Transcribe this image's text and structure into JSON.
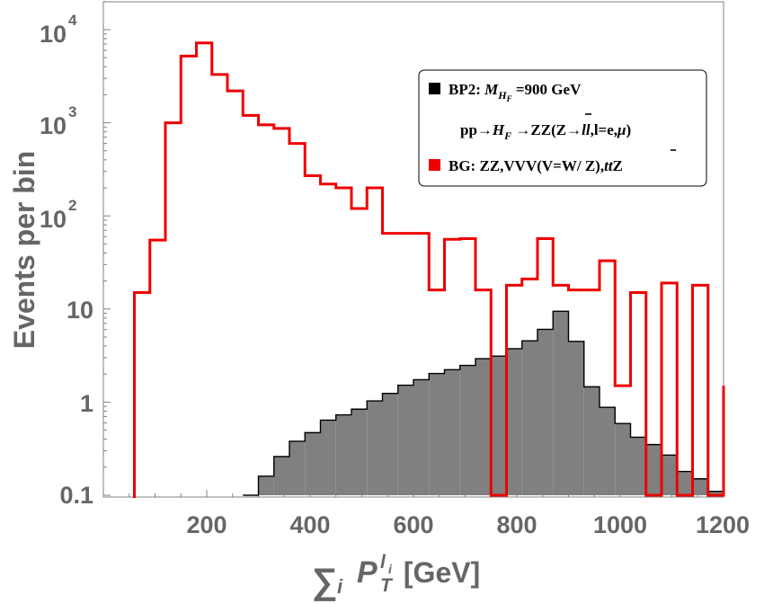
{
  "chart_data": {
    "type": "histogram",
    "x_scale": "linear",
    "y_scale": "log",
    "xlim": [
      0,
      1200
    ],
    "ylim": [
      0.1,
      20000
    ],
    "xlabel_parts": {
      "sum": "∑",
      "sum_index": "i",
      "P": "P",
      "sub": "T",
      "sup": "l",
      "sup_sub": "i",
      "unit": " [GeV]"
    },
    "ylabel": "Events per bin",
    "x_ticks": [
      {
        "value": 200,
        "label": "200"
      },
      {
        "value": 400,
        "label": "400"
      },
      {
        "value": 600,
        "label": "600"
      },
      {
        "value": 800,
        "label": "800"
      },
      {
        "value": 1000,
        "label": "1000"
      },
      {
        "value": 1200,
        "label": "1200"
      }
    ],
    "y_ticks": [
      {
        "value": 0.1,
        "label": "0.1"
      },
      {
        "value": 1,
        "label": "1"
      },
      {
        "value": 10,
        "label": "10"
      },
      {
        "value": 100,
        "mantissa": "10",
        "exp": "2"
      },
      {
        "value": 1000,
        "mantissa": "10",
        "exp": "3"
      },
      {
        "value": 10000,
        "mantissa": "10",
        "exp": "4"
      }
    ],
    "bin_width": 30,
    "series": [
      {
        "name": "BG: ZZ,VVV(V=W/Z),tt̄Z",
        "style": "step",
        "color": "#ee0000",
        "bin_starts": [
          60,
          90,
          120,
          150,
          180,
          210,
          240,
          270,
          300,
          330,
          360,
          390,
          420,
          450,
          480,
          510,
          540,
          570,
          600,
          630,
          660,
          690,
          720,
          750,
          780,
          810,
          840,
          870,
          900,
          930,
          960,
          990,
          1020,
          1050,
          1080,
          1110,
          1140,
          1170
        ],
        "values": [
          15,
          55,
          1000,
          5200,
          7200,
          3300,
          2200,
          1200,
          950,
          870,
          600,
          270,
          220,
          200,
          120,
          200,
          65,
          65,
          65,
          16,
          56,
          57,
          16,
          0.1,
          18,
          21,
          57,
          18,
          16,
          16,
          33,
          1.5,
          15,
          0.1,
          19,
          0.1,
          18,
          0.1
        ],
        "final_edge_value": 1.5
      },
      {
        "name": "BP2: M_HF=900 GeV pp→H_F→ZZ(Z→ll̄,l=e,μ)",
        "style": "filled",
        "color": "#808080",
        "bin_starts": [
          270,
          300,
          330,
          360,
          390,
          420,
          450,
          480,
          510,
          540,
          570,
          600,
          630,
          660,
          690,
          720,
          750,
          780,
          810,
          840,
          870,
          900,
          930,
          960,
          990,
          1020,
          1050,
          1080,
          1110,
          1140,
          1170
        ],
        "values": [
          0.1,
          0.16,
          0.26,
          0.38,
          0.47,
          0.64,
          0.73,
          0.84,
          1.03,
          1.24,
          1.52,
          1.74,
          2.03,
          2.23,
          2.48,
          2.93,
          3.12,
          3.75,
          4.55,
          6.05,
          9.45,
          4.49,
          1.46,
          0.88,
          0.59,
          0.42,
          0.35,
          0.27,
          0.18,
          0.15,
          0.11
        ]
      }
    ],
    "legend": {
      "position": "top-right",
      "entries": [
        {
          "swatch_color": "#000000",
          "line1_prefix": "BP2: ",
          "line1_M": "M",
          "line1_sub": "H",
          "line1_subsub": "F",
          "line1_suffix": " =900 GeV",
          "line2_pre": "pp→",
          "line2_H": "H",
          "line2_Hsub": "F",
          "line2_mid": " →ZZ(Z→",
          "line2_ll": "ll",
          "line2_post": ",l=e,",
          "line2_mu": "μ",
          "line2_close": ")"
        },
        {
          "swatch_color": "#ee0000",
          "text_pre": "BG: ZZ,VVV(V=W/ Z),",
          "text_tt": "tt",
          "text_post": "Z"
        }
      ]
    }
  }
}
